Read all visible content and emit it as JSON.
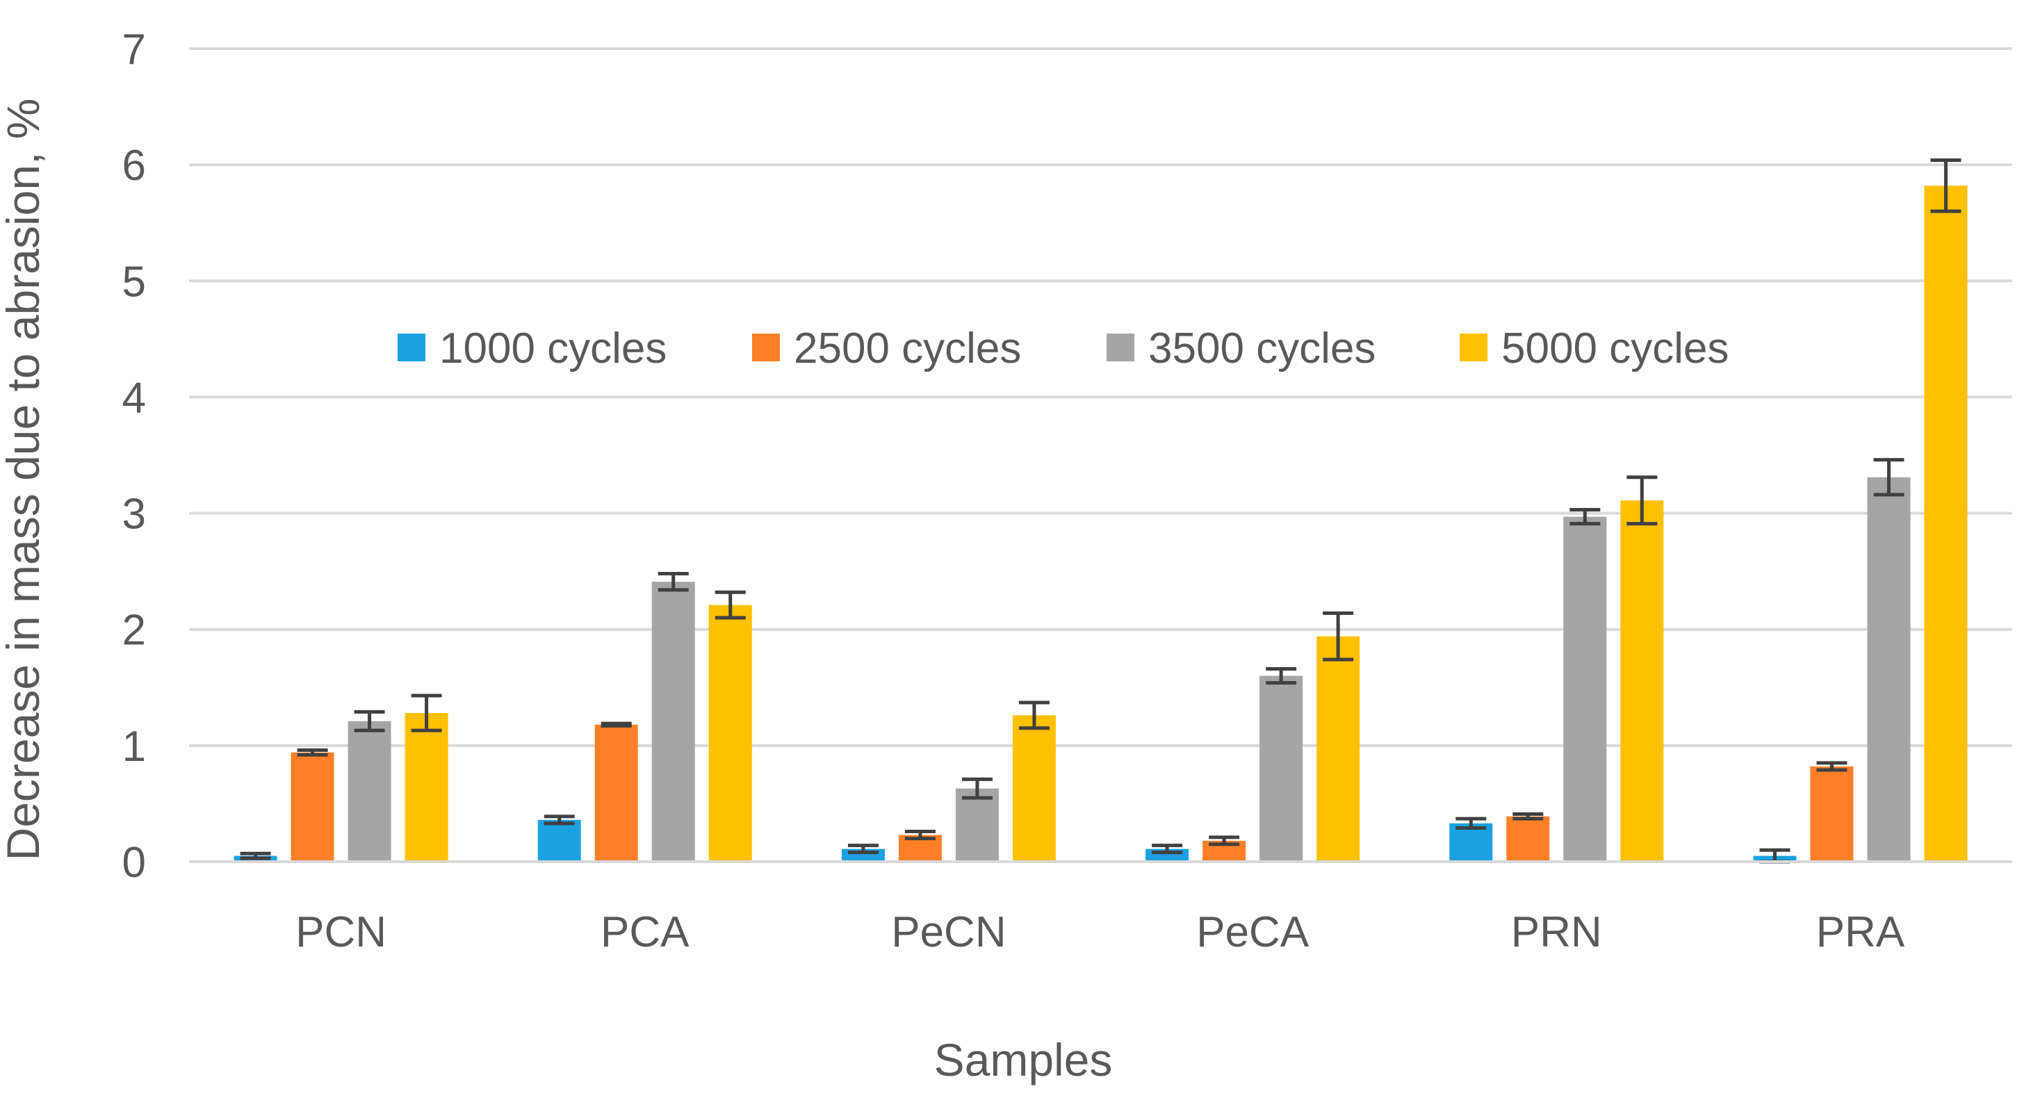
{
  "chart_data": {
    "type": "bar",
    "title": "",
    "xlabel": "Samples",
    "ylabel": "Decrease in mass due to abrasion, %",
    "ylim": [
      0,
      7
    ],
    "yticks": [
      0,
      1,
      2,
      3,
      4,
      5,
      6,
      7
    ],
    "grid": true,
    "legend_position": "top-center",
    "categories": [
      "PCN",
      "PCA",
      "PeCN",
      "PeCA",
      "PRN",
      "PRA"
    ],
    "series": [
      {
        "name": "1000 cycles",
        "color": "#1BA1E2",
        "values": [
          0.05,
          0.36,
          0.11,
          0.11,
          0.33,
          0.05
        ],
        "errors": [
          0.02,
          0.03,
          0.03,
          0.03,
          0.04,
          0.05
        ]
      },
      {
        "name": "2500 cycles",
        "color": "#FF7F27",
        "values": [
          0.94,
          1.18,
          0.23,
          0.18,
          0.39,
          0.82
        ],
        "errors": [
          0.02,
          0.01,
          0.03,
          0.03,
          0.02,
          0.03
        ]
      },
      {
        "name": "3500 cycles",
        "color": "#A5A5A5",
        "values": [
          1.21,
          2.41,
          0.63,
          1.6,
          2.97,
          3.31
        ],
        "errors": [
          0.08,
          0.07,
          0.08,
          0.06,
          0.06,
          0.15
        ]
      },
      {
        "name": "5000 cycles",
        "color": "#FFC000",
        "values": [
          1.28,
          2.21,
          1.26,
          1.94,
          3.11,
          5.82
        ],
        "errors": [
          0.15,
          0.11,
          0.11,
          0.2,
          0.2,
          0.22
        ]
      }
    ],
    "colors": {
      "gridline": "#D9D9D9",
      "axis_line": "#D9D9D9",
      "error_bar": "#404040",
      "text": "#595959"
    }
  }
}
